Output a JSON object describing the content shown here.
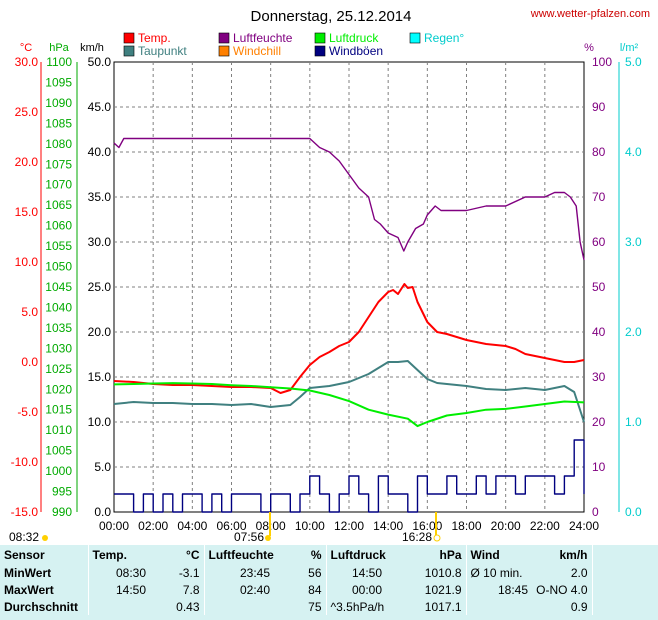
{
  "header": {
    "title": "Donnerstag, 25.12.2014",
    "site": "www.wetter-pfalzen.com"
  },
  "legend": [
    {
      "label": "Temp.",
      "color": "#ff0000"
    },
    {
      "label": "Luftfeuchte",
      "color": "#800080"
    },
    {
      "label": "Luftdruck",
      "color": "#00ee00"
    },
    {
      "label": "Regen°",
      "color": "#00ffff"
    },
    {
      "label": "Taupunkt",
      "color": "#408080"
    },
    {
      "label": "Windchill",
      "color": "#ff8000"
    },
    {
      "label": "Windböen",
      "color": "#000080"
    }
  ],
  "axes": {
    "temp": {
      "unit": "°C",
      "color": "#ff0000",
      "ticks": [
        "30.0",
        "25.0",
        "20.0",
        "15.0",
        "10.0",
        "5.0",
        "0.0",
        "-5.0",
        "-10.0",
        "-15.0"
      ]
    },
    "pressure": {
      "unit": "hPa",
      "color": "#00aa00",
      "ticks": [
        "1100",
        "1095",
        "1090",
        "1085",
        "1080",
        "1075",
        "1070",
        "1065",
        "1060",
        "1055",
        "1050",
        "1045",
        "1040",
        "1035",
        "1030",
        "1025",
        "1020",
        "1015",
        "1010",
        "1005",
        "1000",
        "995",
        "990"
      ]
    },
    "wind": {
      "unit": "km/h",
      "color": "#000000",
      "ticks": [
        "50.0",
        "45.0",
        "40.0",
        "35.0",
        "30.0",
        "25.0",
        "20.0",
        "15.0",
        "10.0",
        "5.0",
        "0.0"
      ]
    },
    "humidity": {
      "unit": "%",
      "color": "#800080",
      "ticks": [
        "100",
        "90",
        "80",
        "70",
        "60",
        "50",
        "40",
        "30",
        "20",
        "10",
        "0"
      ]
    },
    "rain": {
      "unit": "l/m²",
      "color": "#00cccc",
      "ticks": [
        "5.0",
        "4.0",
        "3.0",
        "2.0",
        "1.0",
        "0.0"
      ]
    },
    "time": {
      "ticks": [
        "00:00",
        "02:00",
        "04:00",
        "06:00",
        "08:00",
        "10:00",
        "12:00",
        "14:00",
        "16:00",
        "18:00",
        "20:00",
        "22:00",
        "24:00"
      ]
    }
  },
  "sun": {
    "rise": "08:32",
    "transit": "07:56",
    "set": "16:28"
  },
  "chart_data": {
    "type": "line",
    "x_unit": "hours",
    "xlim": [
      0,
      24
    ],
    "series": [
      {
        "name": "Temp.",
        "axis": "temp",
        "color": "#ff0000",
        "x": [
          0,
          1,
          2,
          3,
          4,
          5,
          6,
          7,
          8,
          8.5,
          9,
          9.5,
          10,
          10.5,
          11,
          11.5,
          12,
          12.5,
          13,
          13.5,
          14,
          14.25,
          14.5,
          14.83,
          15,
          15.25,
          15.5,
          16,
          16.5,
          17,
          18,
          19,
          20,
          20.5,
          21,
          22,
          23,
          23.5,
          24
        ],
        "y": [
          -1.9,
          -2.0,
          -2.2,
          -2.3,
          -2.3,
          -2.4,
          -2.5,
          -2.5,
          -2.6,
          -3.1,
          -2.8,
          -1.5,
          -0.3,
          0.5,
          1.0,
          1.6,
          2.0,
          3.0,
          4.5,
          6.0,
          7.0,
          7.2,
          6.8,
          7.8,
          7.4,
          7.5,
          6.0,
          4.0,
          3.0,
          2.8,
          2.2,
          1.8,
          1.6,
          1.3,
          0.8,
          0.4,
          0.0,
          0.0,
          0.2
        ]
      },
      {
        "name": "Taupunkt",
        "axis": "temp",
        "color": "#408080",
        "x": [
          0,
          1,
          2,
          3,
          4,
          5,
          6,
          7,
          8,
          9,
          9.5,
          10,
          11,
          12,
          13,
          13.5,
          14,
          14.5,
          15,
          15.5,
          16,
          16.5,
          17,
          18,
          19,
          20,
          21,
          22,
          23,
          23.5,
          24
        ],
        "y": [
          -4.2,
          -4.0,
          -4.1,
          -4.1,
          -4.2,
          -4.2,
          -4.3,
          -4.2,
          -4.5,
          -4.3,
          -3.5,
          -2.6,
          -2.4,
          -2.0,
          -1.2,
          -0.6,
          0.0,
          0.0,
          0.1,
          -0.8,
          -1.7,
          -2.1,
          -2.2,
          -2.4,
          -2.7,
          -2.8,
          -2.6,
          -2.8,
          -2.4,
          -3.0,
          -6.0
        ]
      },
      {
        "name": "Luftfeuchte",
        "axis": "humidity",
        "color": "#800080",
        "x": [
          0,
          0.25,
          0.5,
          1,
          2,
          3,
          4,
          5,
          6,
          7,
          8,
          9,
          10,
          10.5,
          11,
          11.5,
          12,
          12.5,
          13,
          13.3,
          13.6,
          14,
          14.5,
          14.8,
          15,
          15.4,
          15.8,
          16,
          16.4,
          16.7,
          17,
          17.5,
          18,
          19,
          20,
          21,
          22,
          22.5,
          23,
          23.3,
          23.6,
          23.8,
          24
        ],
        "y": [
          82,
          81,
          83,
          83,
          83,
          83,
          83,
          83,
          83,
          83,
          83,
          83,
          83,
          81,
          80,
          78,
          75,
          72,
          70,
          65,
          64,
          62,
          61,
          58,
          60,
          63,
          64,
          66,
          68,
          67,
          67,
          67,
          67,
          68,
          68,
          70,
          70,
          71,
          71,
          70,
          68,
          60,
          56
        ]
      },
      {
        "name": "Luftdruck",
        "axis": "pressure",
        "color": "#00ee00",
        "x": [
          0,
          1,
          2,
          3,
          4,
          5,
          6,
          7,
          8,
          9,
          10,
          11,
          12,
          13,
          14,
          15,
          15.5,
          16,
          17,
          18,
          19,
          20,
          21,
          22,
          23,
          24
        ],
        "y": [
          1021.2,
          1021.3,
          1021.4,
          1021.5,
          1021.4,
          1021.3,
          1021.0,
          1020.8,
          1020.5,
          1020.2,
          1019.7,
          1018.6,
          1017.1,
          1015.0,
          1013.8,
          1012.8,
          1011.0,
          1012.0,
          1013.6,
          1014.2,
          1015.0,
          1015.2,
          1015.8,
          1016.4,
          1017.0,
          1016.8
        ]
      },
      {
        "name": "Windböen",
        "axis": "wind",
        "color": "#000080",
        "x": [
          0,
          0.5,
          1,
          1.5,
          2,
          2.5,
          3,
          3.5,
          4,
          4.5,
          5,
          5.5,
          6,
          6.5,
          7,
          7.5,
          8,
          8.5,
          9,
          9.5,
          10,
          10.5,
          11,
          11.5,
          12,
          12.5,
          13,
          13.5,
          14,
          14.5,
          15,
          15.5,
          16,
          16.5,
          17,
          17.5,
          18,
          18.5,
          19,
          19.5,
          20,
          20.5,
          21,
          21.5,
          22,
          22.5,
          23,
          23.5,
          24
        ],
        "y": [
          2,
          2,
          0,
          2,
          0,
          2,
          0,
          2,
          2,
          0,
          2,
          0,
          2,
          2,
          2,
          0,
          2,
          2,
          0,
          2,
          4,
          2,
          0,
          2,
          4,
          2,
          0,
          4,
          2,
          2,
          0,
          4,
          2,
          2,
          4,
          2,
          2,
          4,
          2,
          4,
          4,
          2,
          4,
          4,
          4,
          2,
          4,
          8,
          2
        ]
      }
    ]
  },
  "stats": {
    "headers": [
      "Sensor",
      "Temp.",
      "°C",
      "Luftfeuchte",
      "%",
      "Luftdruck",
      "hPa",
      "Wind",
      "km/h"
    ],
    "rows": [
      [
        "MinWert",
        "08:30",
        "-3.1",
        "23:45",
        "56",
        "14:50",
        "1010.8",
        "Ø 10 min.",
        "2.0"
      ],
      [
        "MaxWert",
        "14:50",
        "7.8",
        "02:40",
        "84",
        "00:00",
        "1021.9",
        "18:45",
        "O-NO 4.0"
      ],
      [
        "Durchschnitt",
        "",
        "0.43",
        "",
        "75",
        "^3.5hPa/h",
        "1017.1",
        "",
        "0.9"
      ]
    ]
  }
}
